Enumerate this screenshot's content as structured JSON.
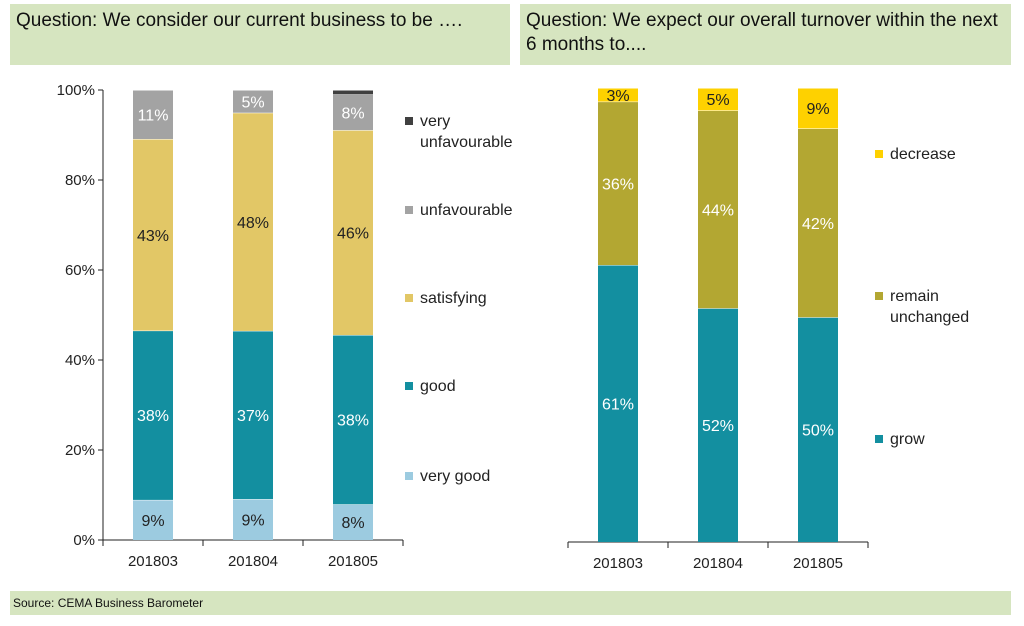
{
  "header_left": {
    "question": "Question: We consider our current business to be …."
  },
  "header_right": {
    "question": "Question: We expect our overall turnover within the next 6 months to...."
  },
  "source": "Source: CEMA Business Barometer",
  "chart_data": [
    {
      "type": "bar",
      "stacked": true,
      "categories": [
        "201803",
        "201804",
        "201805"
      ],
      "yticks": [
        "0%",
        "20%",
        "40%",
        "60%",
        "80%",
        "100%"
      ],
      "ylim": [
        0,
        100
      ],
      "legend_position": "right",
      "series": [
        {
          "name": "very good",
          "values": [
            9,
            9,
            8
          ],
          "color": "#9ccbe0",
          "label_color": "#222222",
          "labels": [
            "9%",
            "9%",
            "8%"
          ]
        },
        {
          "name": "good",
          "values": [
            38,
            37,
            38
          ],
          "color": "#138fa0",
          "label_color": "#ffffff",
          "labels": [
            "38%",
            "37%",
            "38%"
          ]
        },
        {
          "name": "satisfying",
          "values": [
            43,
            48,
            46
          ],
          "color": "#e2c766",
          "label_color": "#222222",
          "labels": [
            "43%",
            "48%",
            "46%"
          ]
        },
        {
          "name": "unfavourable",
          "values": [
            11,
            5,
            8
          ],
          "color": "#a3a3a3",
          "label_color": "#ffffff",
          "labels": [
            "11%",
            "5%",
            "8%"
          ]
        },
        {
          "name": "very unfavourable",
          "values": [
            0,
            0,
            1
          ],
          "color": "#404040",
          "label_color": "#ffffff",
          "labels": [
            "",
            "",
            ""
          ]
        }
      ]
    },
    {
      "type": "bar",
      "stacked": true,
      "categories": [
        "201803",
        "201804",
        "201805"
      ],
      "ylim": [
        0,
        100
      ],
      "legend_position": "right",
      "series": [
        {
          "name": "grow",
          "values": [
            61,
            52,
            50
          ],
          "color": "#138fa0",
          "label_color": "#ffffff",
          "labels": [
            "61%",
            "52%",
            "50%"
          ]
        },
        {
          "name": "remain unchanged",
          "values": [
            36,
            44,
            42
          ],
          "color": "#b3a732",
          "label_color": "#ffffff",
          "labels": [
            "36%",
            "44%",
            "42%"
          ]
        },
        {
          "name": "decrease",
          "values": [
            3,
            5,
            9
          ],
          "color": "#fed100",
          "label_color": "#222222",
          "labels": [
            "3%",
            "5%",
            "9%"
          ]
        }
      ]
    }
  ]
}
